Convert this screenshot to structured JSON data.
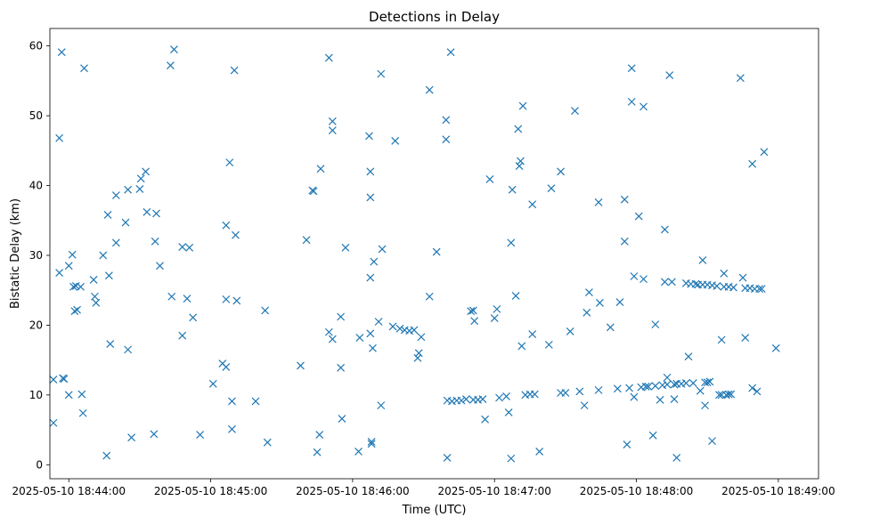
{
  "chart_data": {
    "type": "scatter",
    "title": "Detections in Delay",
    "xlabel": "Time (UTC)",
    "ylabel": "Bistatic Delay (km)",
    "x_unit": "seconds since 18:44:00",
    "xlim": [
      -8,
      317
    ],
    "ylim": [
      -2,
      62.5
    ],
    "x_ticks": [
      {
        "value": 0,
        "label": "2025-05-10 18:44:00"
      },
      {
        "value": 60,
        "label": "2025-05-10 18:45:00"
      },
      {
        "value": 120,
        "label": "2025-05-10 18:46:00"
      },
      {
        "value": 180,
        "label": "2025-05-10 18:47:00"
      },
      {
        "value": 240,
        "label": "2025-05-10 18:48:00"
      },
      {
        "value": 300,
        "label": "2025-05-10 18:49:00"
      }
    ],
    "y_ticks": [
      0,
      10,
      20,
      30,
      40,
      50,
      60
    ],
    "marker": "x",
    "color": "#1f77b4",
    "series": [
      {
        "name": "detections",
        "points": [
          [
            -6.5,
            12.2
          ],
          [
            -6.5,
            6.0
          ],
          [
            -4,
            27.5
          ],
          [
            -4,
            46.8
          ],
          [
            -3,
            59.1
          ],
          [
            -2.5,
            12.4
          ],
          [
            -2,
            12.3
          ],
          [
            0,
            28.5
          ],
          [
            0,
            10.0
          ],
          [
            1.5,
            30.1
          ],
          [
            2,
            25.5
          ],
          [
            2.5,
            22.0
          ],
          [
            3,
            25.6
          ],
          [
            3.5,
            22.2
          ],
          [
            5,
            25.5
          ],
          [
            5.5,
            10.1
          ],
          [
            6,
            7.4
          ],
          [
            6.5,
            56.8
          ],
          [
            10.5,
            26.5
          ],
          [
            11,
            24.1
          ],
          [
            11.5,
            23.2
          ],
          [
            14.5,
            30.0
          ],
          [
            16,
            1.3
          ],
          [
            16.5,
            35.8
          ],
          [
            17,
            27.1
          ],
          [
            17.5,
            17.3
          ],
          [
            20,
            31.8
          ],
          [
            20,
            38.6
          ],
          [
            24,
            34.7
          ],
          [
            25,
            16.5
          ],
          [
            25,
            39.4
          ],
          [
            26.5,
            3.9
          ],
          [
            30,
            39.5
          ],
          [
            30.5,
            41.0
          ],
          [
            32.5,
            42.0
          ],
          [
            33,
            36.2
          ],
          [
            36,
            4.4
          ],
          [
            36.5,
            32.0
          ],
          [
            37,
            36.0
          ],
          [
            38.5,
            28.5
          ],
          [
            43,
            57.2
          ],
          [
            43.5,
            24.1
          ],
          [
            44.5,
            59.5
          ],
          [
            48,
            18.5
          ],
          [
            48,
            31.2
          ],
          [
            50,
            23.8
          ],
          [
            51,
            31.1
          ],
          [
            52.5,
            21.1
          ],
          [
            55.5,
            4.3
          ],
          [
            61,
            11.6
          ],
          [
            65,
            14.5
          ],
          [
            66.5,
            14.0
          ],
          [
            66.5,
            34.3
          ],
          [
            66.5,
            23.7
          ],
          [
            68,
            43.3
          ],
          [
            69,
            9.1
          ],
          [
            69,
            5.1
          ],
          [
            70,
            56.5
          ],
          [
            70.5,
            32.9
          ],
          [
            71,
            23.5
          ],
          [
            79,
            9.1
          ],
          [
            83,
            22.1
          ],
          [
            84,
            3.2
          ],
          [
            98,
            14.2
          ],
          [
            100.5,
            32.2
          ],
          [
            103,
            39.3
          ],
          [
            103.5,
            39.2
          ],
          [
            105,
            1.8
          ],
          [
            106,
            4.3
          ],
          [
            106.5,
            42.4
          ],
          [
            110,
            58.3
          ],
          [
            110,
            19.0
          ],
          [
            111.5,
            49.2
          ],
          [
            111.5,
            18.0
          ],
          [
            111.5,
            47.9
          ],
          [
            115,
            13.9
          ],
          [
            115,
            21.2
          ],
          [
            115.5,
            6.6
          ],
          [
            117,
            31.1
          ],
          [
            122.5,
            1.9
          ],
          [
            123,
            18.2
          ],
          [
            127,
            47.1
          ],
          [
            127.5,
            26.8
          ],
          [
            127.5,
            42.0
          ],
          [
            127.5,
            38.3
          ],
          [
            127.5,
            18.8
          ],
          [
            128,
            3.0
          ],
          [
            128,
            3.3
          ],
          [
            128.5,
            16.7
          ],
          [
            129,
            29.1
          ],
          [
            131,
            20.5
          ],
          [
            132,
            8.5
          ],
          [
            132,
            56.0
          ],
          [
            132.5,
            30.9
          ],
          [
            137,
            19.8
          ],
          [
            138,
            46.4
          ],
          [
            140,
            19.5
          ],
          [
            142,
            19.3
          ],
          [
            144,
            19.2
          ],
          [
            146,
            19.3
          ],
          [
            147.5,
            15.3
          ],
          [
            148,
            16.0
          ],
          [
            149,
            18.3
          ],
          [
            152.5,
            24.1
          ],
          [
            152.5,
            53.7
          ],
          [
            155.5,
            30.5
          ],
          [
            159.5,
            49.4
          ],
          [
            159.5,
            46.6
          ],
          [
            160,
            1.0
          ],
          [
            161.5,
            59.1
          ],
          [
            160,
            9.2
          ],
          [
            162,
            9.1
          ],
          [
            164,
            9.2
          ],
          [
            166,
            9.2
          ],
          [
            168,
            9.4
          ],
          [
            170,
            22.0
          ],
          [
            171,
            22.1
          ],
          [
            171.5,
            20.6
          ],
          [
            171,
            9.3
          ],
          [
            173,
            9.3
          ],
          [
            175,
            9.4
          ],
          [
            176,
            6.5
          ],
          [
            178,
            40.9
          ],
          [
            180,
            21.0
          ],
          [
            181,
            22.3
          ],
          [
            182,
            9.6
          ],
          [
            185,
            9.8
          ],
          [
            186,
            7.5
          ],
          [
            187,
            0.9
          ],
          [
            187,
            31.8
          ],
          [
            187.5,
            39.4
          ],
          [
            189,
            24.2
          ],
          [
            190,
            48.1
          ],
          [
            190.5,
            42.8
          ],
          [
            191,
            43.5
          ],
          [
            191.5,
            17.0
          ],
          [
            192,
            51.4
          ],
          [
            193,
            10.0
          ],
          [
            195,
            10.1
          ],
          [
            196,
            37.3
          ],
          [
            196,
            18.7
          ],
          [
            197,
            10.1
          ],
          [
            199,
            1.9
          ],
          [
            203,
            17.2
          ],
          [
            204,
            39.6
          ],
          [
            208,
            42.0
          ],
          [
            208,
            10.3
          ],
          [
            210,
            10.3
          ],
          [
            212,
            19.1
          ],
          [
            214,
            50.7
          ],
          [
            216,
            10.5
          ],
          [
            218,
            8.5
          ],
          [
            219,
            21.8
          ],
          [
            220,
            24.7
          ],
          [
            224,
            10.7
          ],
          [
            224,
            37.6
          ],
          [
            224.5,
            23.2
          ],
          [
            229,
            19.7
          ],
          [
            232,
            10.9
          ],
          [
            233,
            23.3
          ],
          [
            235,
            38.0
          ],
          [
            235,
            32.0
          ],
          [
            236,
            2.9
          ],
          [
            237,
            11.0
          ],
          [
            238,
            56.8
          ],
          [
            238,
            52.0
          ],
          [
            239,
            27.0
          ],
          [
            239,
            9.7
          ],
          [
            241,
            35.6
          ],
          [
            242,
            11.1
          ],
          [
            243,
            51.3
          ],
          [
            243,
            26.6
          ],
          [
            244,
            11.2
          ],
          [
            245,
            11.2
          ],
          [
            247,
            4.2
          ],
          [
            248,
            11.3
          ],
          [
            248,
            20.1
          ],
          [
            250,
            9.3
          ],
          [
            251,
            11.4
          ],
          [
            252,
            33.7
          ],
          [
            252,
            26.2
          ],
          [
            253,
            11.5
          ],
          [
            253,
            12.5
          ],
          [
            254,
            55.8
          ],
          [
            255,
            26.2
          ],
          [
            256,
            11.5
          ],
          [
            256,
            9.4
          ],
          [
            257,
            11.6
          ],
          [
            257,
            1.0
          ],
          [
            259,
            11.6
          ],
          [
            261,
            11.7
          ],
          [
            261,
            26.0
          ],
          [
            262,
            15.5
          ],
          [
            263,
            25.9
          ],
          [
            264,
            11.7
          ],
          [
            265,
            25.9
          ],
          [
            266,
            25.8
          ],
          [
            267,
            10.6
          ],
          [
            268,
            25.8
          ],
          [
            268,
            29.3
          ],
          [
            269,
            11.8
          ],
          [
            269,
            8.5
          ],
          [
            270,
            11.8
          ],
          [
            270,
            25.8
          ],
          [
            271,
            11.9
          ],
          [
            272,
            3.4
          ],
          [
            272,
            25.7
          ],
          [
            274,
            25.6
          ],
          [
            275,
            10.0
          ],
          [
            276,
            17.9
          ],
          [
            276,
            10.0
          ],
          [
            277,
            27.4
          ],
          [
            277,
            25.5
          ],
          [
            278,
            10.0
          ],
          [
            279,
            25.5
          ],
          [
            279,
            10.1
          ],
          [
            280,
            10.1
          ],
          [
            281,
            25.4
          ],
          [
            284,
            55.4
          ],
          [
            285,
            26.8
          ],
          [
            286,
            25.3
          ],
          [
            286,
            18.2
          ],
          [
            288,
            25.3
          ],
          [
            289,
            43.1
          ],
          [
            289,
            11.0
          ],
          [
            290,
            25.2
          ],
          [
            291,
            10.5
          ],
          [
            292,
            25.2
          ],
          [
            293,
            25.2
          ],
          [
            294,
            44.8
          ],
          [
            299,
            16.7
          ]
        ]
      }
    ]
  }
}
